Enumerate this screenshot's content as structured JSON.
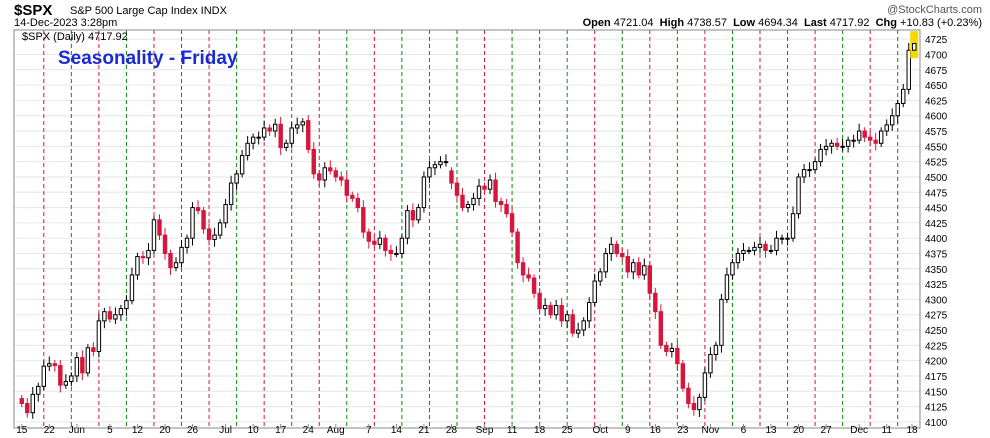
{
  "header": {
    "symbol": "$SPX",
    "description": "S&P 500 Large Cap Index  INDX",
    "datetime": "14-Dec-2023 3:28pm",
    "brand": "@StockCharts.com",
    "open_label": "Open",
    "open": "4721.04",
    "high_label": "High",
    "high": "4738.57",
    "low_label": "Low",
    "low": "4694.34",
    "last_label": "Last",
    "last": "4717.92",
    "chg_label": "Chg",
    "chg": "+10.83 (+0.23%)"
  },
  "legend": {
    "text": "$SPX (Daily) 4717.92"
  },
  "colors": {
    "up": "#000000",
    "down": "#d6163c",
    "friday_up": "#0a8a0a",
    "friday_down": "#d6163c",
    "title": "#1a2bd6",
    "grid": "#e6e6e6",
    "last_bg": "#f5d800"
  },
  "chart_data": {
    "type": "candlestick",
    "title": "Seasonality - Friday",
    "ylim": [
      4090,
      4740
    ],
    "yticks": [
      4100,
      4125,
      4150,
      4175,
      4200,
      4225,
      4250,
      4275,
      4300,
      4325,
      4350,
      4375,
      4400,
      4425,
      4450,
      4475,
      4500,
      4525,
      4550,
      4575,
      4600,
      4625,
      4650,
      4675,
      4700,
      4725
    ],
    "xtick_labels": [
      "15",
      "22",
      "Jun",
      "5",
      "12",
      "20",
      "26",
      "Jul",
      "10",
      "17",
      "24",
      "Aug",
      "7",
      "14",
      "21",
      "28",
      "Sep",
      "11",
      "18",
      "25",
      "Oct",
      "9",
      "16",
      "23",
      "Nov",
      "6",
      "13",
      "20",
      "27",
      "Dec",
      "11",
      "18"
    ],
    "last_value": 4717.92,
    "segments": [
      {
        "start": 4138,
        "closes": [
          4130,
          4115,
          4145,
          4158,
          4191,
          4195,
          4192,
          4160,
          4166,
          4175,
          4205,
          4180,
          4221,
          4215,
          4265,
          4280,
          4268,
          4275,
          4285,
          4298,
          4340,
          4370,
          4368,
          4380,
          4430,
          4405,
          4375,
          4352,
          4360,
          4385,
          4400,
          4450,
          4445,
          4415,
          4398,
          4405,
          4425,
          4455,
          4490,
          4505,
          4535,
          4555,
          4565,
          4565,
          4580,
          4575,
          4586,
          4548,
          4555,
          4580,
          4585,
          4590
        ]
      },
      {
        "start": 4592,
        "closes": [
          4545,
          4505,
          4495,
          4515,
          4510,
          4500,
          4495,
          4470,
          4465,
          4450,
          4410,
          4395,
          4390,
          4400,
          4380,
          4375,
          4375,
          4400,
          4445,
          4430,
          4450,
          4500,
          4515,
          4520,
          4525,
          4525
        ]
      },
      {
        "start": 4510,
        "closes": [
          4490,
          4470,
          4450,
          4455,
          4465,
          4485,
          4480,
          4495,
          4460,
          4455,
          4440,
          4410,
          4360,
          4340,
          4335,
          4310,
          4285,
          4290,
          4275,
          4290,
          4265,
          4275,
          4245,
          4250,
          4265,
          4295,
          4330,
          4345,
          4375,
          4390,
          4375,
          4370,
          4345,
          4360,
          4340,
          4355,
          4310,
          4280,
          4225,
          4215,
          4220,
          4195,
          4155,
          4130,
          4120,
          4140,
          4180,
          4210,
          4225,
          4300,
          4340,
          4360,
          4375,
          4380,
          4380,
          4385,
          4390,
          4380,
          4380,
          4400,
          4400
        ]
      },
      {
        "start": 4400,
        "closes": [
          4400,
          4440,
          4500,
          4512,
          4512,
          4525,
          4545,
          4550,
          4555,
          4550,
          4550,
          4560,
          4560,
          4575,
          4565,
          4560,
          4555,
          4575,
          4585,
          4600,
          4620,
          4643,
          4707,
          4717.92
        ]
      }
    ]
  }
}
